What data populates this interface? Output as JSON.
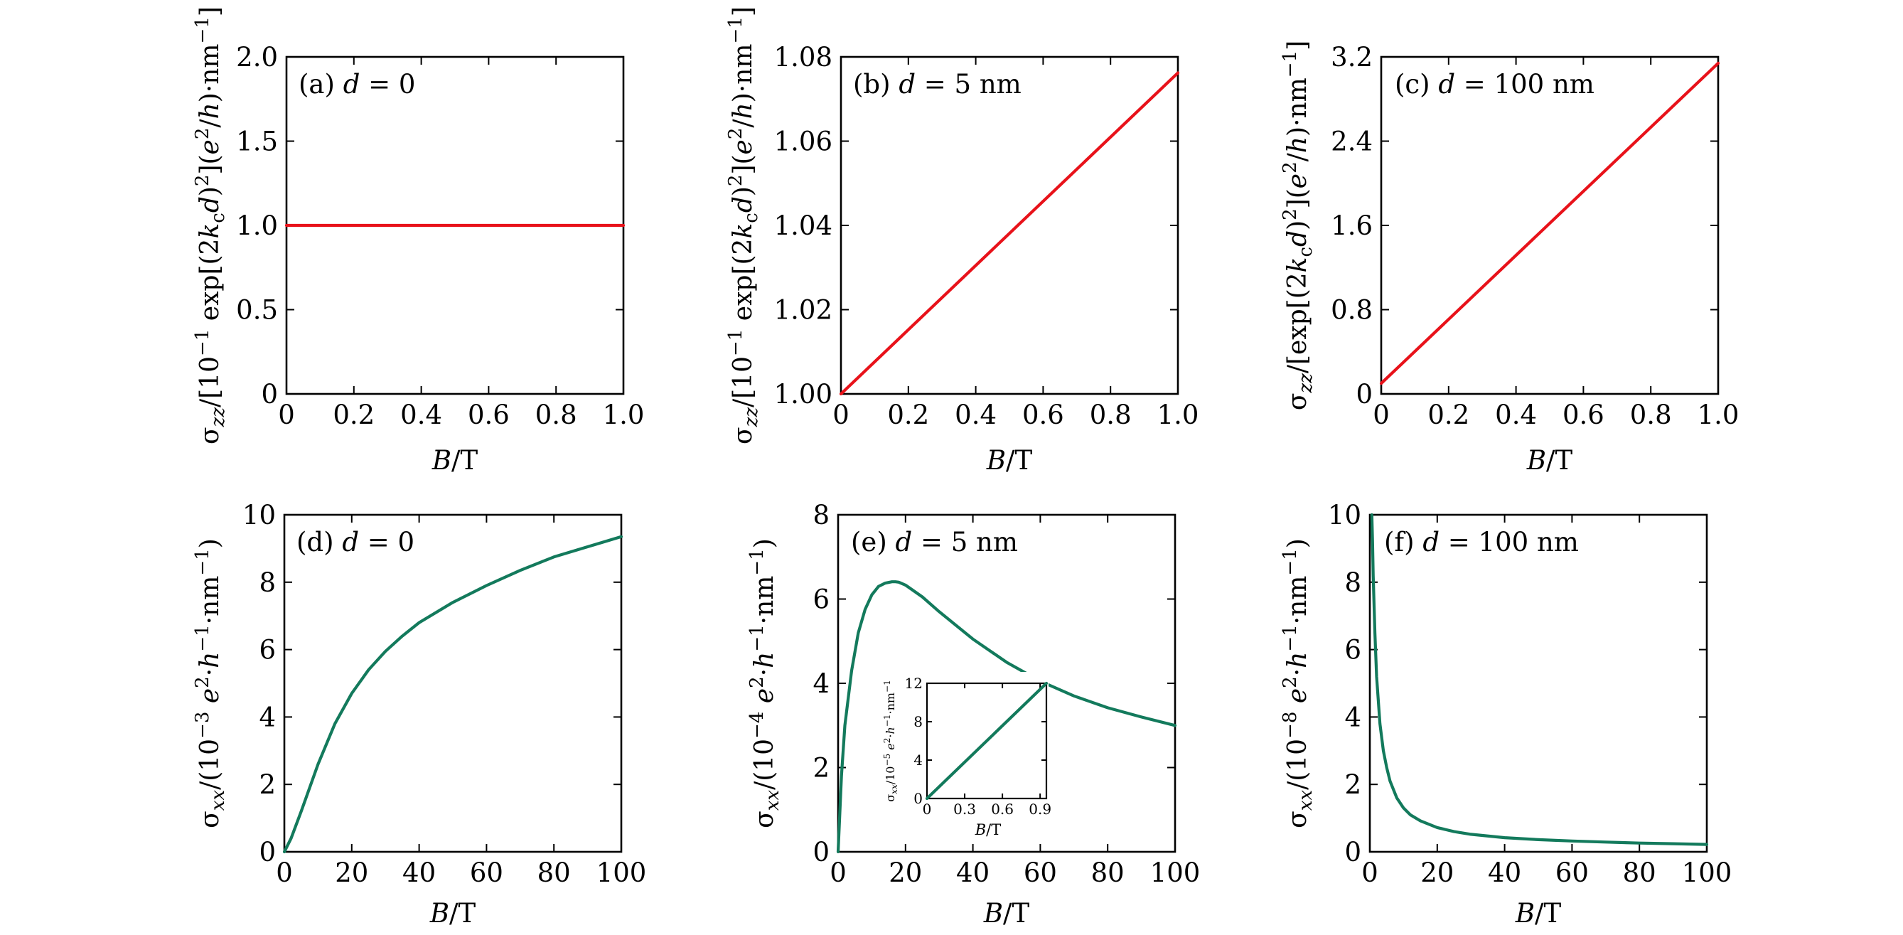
{
  "colors": {
    "red": "#e8121a",
    "green": "#137a5c",
    "frame": "#000000"
  },
  "chart_data": [
    {
      "id": "a",
      "type": "line",
      "panel_label": "(a)",
      "annotation": "d = 0",
      "xlabel": "B/T",
      "ylabel": "σzz/[10−1 exp[(2kcd)2](e2/h)·nm−1]",
      "xlim": [
        0,
        1
      ],
      "ylim": [
        0,
        2
      ],
      "xticks": [
        0,
        0.2,
        0.4,
        0.6,
        0.8,
        1.0
      ],
      "xtick_labels": [
        "0",
        "0.2",
        "0.4",
        "0.6",
        "0.8",
        "1.0"
      ],
      "yticks": [
        0,
        0.5,
        1.0,
        1.5,
        2.0
      ],
      "ytick_labels": [
        "0",
        "0.5",
        "1.0",
        "1.5",
        "2.0"
      ],
      "series": [
        {
          "name": "σzz",
          "color": "#e8121a",
          "x": [
            0,
            1
          ],
          "y": [
            1.0,
            1.0
          ]
        }
      ]
    },
    {
      "id": "b",
      "type": "line",
      "panel_label": "(b)",
      "annotation": "d = 5 nm",
      "xlabel": "B/T",
      "ylabel": "σzz/[10−1 exp[(2kcd)2](e2/h)·nm−1]",
      "xlim": [
        0,
        1
      ],
      "ylim": [
        1.0,
        1.08
      ],
      "xticks": [
        0,
        0.2,
        0.4,
        0.6,
        0.8,
        1.0
      ],
      "xtick_labels": [
        "0",
        "0.2",
        "0.4",
        "0.6",
        "0.8",
        "1.0"
      ],
      "yticks": [
        1.0,
        1.02,
        1.04,
        1.06,
        1.08
      ],
      "ytick_labels": [
        "1.00",
        "1.02",
        "1.04",
        "1.06",
        "1.08"
      ],
      "series": [
        {
          "name": "σzz",
          "color": "#e8121a",
          "x": [
            0,
            1
          ],
          "y": [
            1.0,
            1.0762
          ]
        }
      ]
    },
    {
      "id": "c",
      "type": "line",
      "panel_label": "(c)",
      "annotation": "d = 100 nm",
      "xlabel": "B/T",
      "ylabel": "σzz/[exp[(2kcd)2](e2/h)·nm−1]",
      "xlim": [
        0,
        1
      ],
      "ylim": [
        0,
        3.2
      ],
      "xticks": [
        0,
        0.2,
        0.4,
        0.6,
        0.8,
        1.0
      ],
      "xtick_labels": [
        "0",
        "0.2",
        "0.4",
        "0.6",
        "0.8",
        "1.0"
      ],
      "yticks": [
        0,
        0.8,
        1.6,
        2.4,
        3.2
      ],
      "ytick_labels": [
        "0",
        "0.8",
        "1.6",
        "2.4",
        "3.2"
      ],
      "series": [
        {
          "name": "σzz",
          "color": "#e8121a",
          "x": [
            0,
            1
          ],
          "y": [
            0.1,
            3.14
          ]
        }
      ]
    },
    {
      "id": "d",
      "type": "line",
      "panel_label": "(d)",
      "annotation": "d = 0",
      "xlabel": "B/T",
      "ylabel": "σxx/(10−3 e2·h−1·nm−1)",
      "xlim": [
        0,
        100
      ],
      "ylim": [
        0,
        10
      ],
      "xticks": [
        0,
        20,
        40,
        60,
        80,
        100
      ],
      "xtick_labels": [
        "0",
        "20",
        "40",
        "60",
        "80",
        "100"
      ],
      "yticks": [
        0,
        2,
        4,
        6,
        8,
        10
      ],
      "ytick_labels": [
        "0",
        "2",
        "4",
        "6",
        "8",
        "10"
      ],
      "series": [
        {
          "name": "σxx",
          "color": "#137a5c",
          "x": [
            0,
            2,
            5,
            10,
            15,
            20,
            25,
            30,
            35,
            40,
            50,
            60,
            70,
            80,
            90,
            100
          ],
          "y": [
            0,
            0.4,
            1.2,
            2.6,
            3.8,
            4.7,
            5.4,
            5.95,
            6.4,
            6.8,
            7.4,
            7.9,
            8.35,
            8.75,
            9.05,
            9.35
          ]
        }
      ]
    },
    {
      "id": "e",
      "type": "line",
      "panel_label": "(e)",
      "annotation": "d = 5 nm",
      "xlabel": "B/T",
      "ylabel": "σxx/(10−4 e2·h−1·nm−1)",
      "xlim": [
        0,
        100
      ],
      "ylim": [
        0,
        8
      ],
      "xticks": [
        0,
        20,
        40,
        60,
        80,
        100
      ],
      "xtick_labels": [
        "0",
        "20",
        "40",
        "60",
        "80",
        "100"
      ],
      "yticks": [
        0,
        2,
        4,
        6,
        8
      ],
      "ytick_labels": [
        "0",
        "2",
        "4",
        "6",
        "8"
      ],
      "series": [
        {
          "name": "σxx",
          "color": "#137a5c",
          "x": [
            0,
            1,
            2,
            4,
            6,
            8,
            10,
            12,
            14,
            16,
            17,
            18,
            20,
            25,
            30,
            40,
            50,
            60,
            70,
            80,
            90,
            100
          ],
          "y": [
            0,
            1.8,
            3.0,
            4.3,
            5.2,
            5.75,
            6.1,
            6.3,
            6.38,
            6.41,
            6.41,
            6.4,
            6.33,
            6.05,
            5.7,
            5.05,
            4.5,
            4.05,
            3.7,
            3.42,
            3.2,
            3.0
          ]
        }
      ],
      "inset": {
        "type": "line",
        "xlabel": "B/T",
        "ylabel": "σxx/10−5 e2·h−1·nm−1",
        "xlim": [
          0,
          0.95
        ],
        "ylim": [
          0,
          12
        ],
        "xticks": [
          0,
          0.3,
          0.6,
          0.9
        ],
        "xtick_labels": [
          "0",
          "0.3",
          "0.6",
          "0.9"
        ],
        "yticks": [
          0,
          4,
          8,
          12
        ],
        "ytick_labels": [
          "0",
          "4",
          "8",
          "12"
        ],
        "series": [
          {
            "name": "σxx",
            "color": "#137a5c",
            "x": [
              0,
              0.95
            ],
            "y": [
              0,
              12
            ]
          }
        ]
      }
    },
    {
      "id": "f",
      "type": "line",
      "panel_label": "(f)",
      "annotation": "d = 100 nm",
      "xlabel": "B/T",
      "ylabel": "σxx/(10−8 e2·h−1·nm−1)",
      "xlim": [
        0,
        100
      ],
      "ylim": [
        0,
        10
      ],
      "xticks": [
        0,
        20,
        40,
        60,
        80,
        100
      ],
      "xtick_labels": [
        "0",
        "20",
        "40",
        "60",
        "80",
        "100"
      ],
      "yticks": [
        0,
        2,
        4,
        6,
        8,
        10
      ],
      "ytick_labels": [
        "0",
        "2",
        "4",
        "6",
        "8",
        "10"
      ],
      "series": [
        {
          "name": "σxx",
          "color": "#137a5c",
          "x": [
            0.6,
            0.8,
            1,
            1.5,
            2,
            3,
            4,
            5,
            6,
            8,
            10,
            12,
            15,
            20,
            25,
            30,
            40,
            50,
            60,
            70,
            80,
            90,
            100
          ],
          "y": [
            10,
            9.2,
            8.2,
            6.5,
            5.2,
            3.8,
            3.0,
            2.5,
            2.1,
            1.6,
            1.3,
            1.1,
            0.92,
            0.72,
            0.6,
            0.52,
            0.42,
            0.36,
            0.32,
            0.29,
            0.26,
            0.24,
            0.22
          ]
        }
      ]
    }
  ]
}
